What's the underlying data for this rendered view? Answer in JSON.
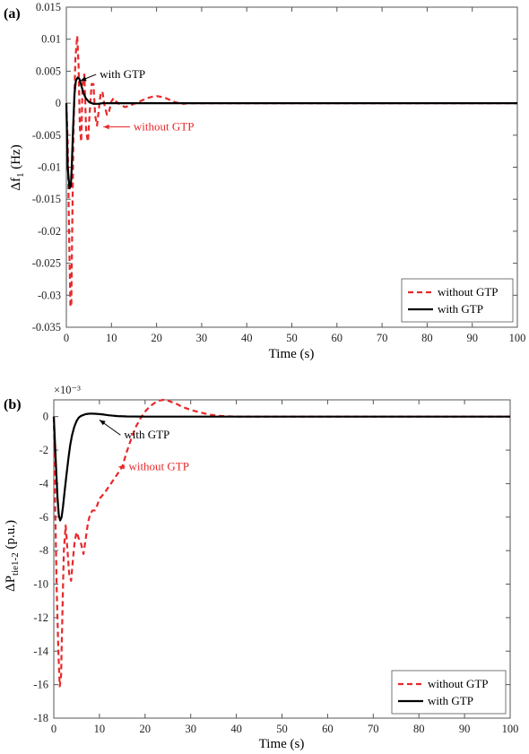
{
  "chart_data": [
    {
      "type": "line",
      "panel_label": "(a)",
      "xlabel": "Time (s)",
      "ylabel_main": "Δf",
      "ylabel_sub": "1",
      "ylabel_unit": " (Hz)",
      "exponent_label": "",
      "xlim": [
        0,
        100
      ],
      "ylim": [
        -0.035,
        0.015
      ],
      "xticks": [
        0,
        10,
        20,
        30,
        40,
        50,
        60,
        70,
        80,
        90,
        100
      ],
      "yticks": [
        -0.035,
        -0.03,
        -0.025,
        -0.02,
        -0.015,
        -0.01,
        -0.005,
        0,
        0.005,
        0.01,
        0.015
      ],
      "ytick_labels": [
        "-0.035",
        "-0.03",
        "-0.025",
        "-0.02",
        "-0.015",
        "-0.01",
        "-0.005",
        "0",
        "0.005",
        "0.01",
        "0.015"
      ],
      "legend_position": "bottom-right",
      "series": [
        {
          "name": "without GTP",
          "color": "#e8282b",
          "style": "dashed",
          "x": [
            0,
            0.3,
            0.6,
            0.9,
            1.1,
            1.3,
            1.6,
            2.0,
            2.4,
            2.7,
            3.0,
            3.3,
            3.6,
            4.0,
            4.4,
            4.8,
            5.2,
            5.6,
            6.0,
            6.4,
            6.8,
            7.2,
            7.6,
            8.0,
            8.5,
            9.0,
            9.5,
            10.0,
            10.5,
            11.0,
            12.0,
            13.0,
            14.0,
            15.0,
            16.0,
            17.0,
            18.0,
            19.0,
            20.0,
            21.0,
            22.0,
            23.0,
            24.0,
            25.0,
            26.0,
            27.0,
            28.0,
            30.0,
            35.0,
            40.0,
            100.0
          ],
          "y": [
            0,
            -0.006,
            -0.02,
            -0.0315,
            -0.0318,
            -0.02,
            -0.004,
            0.007,
            0.0105,
            0.006,
            -0.004,
            -0.006,
            0.003,
            0.0045,
            -0.0045,
            -0.006,
            -0.001,
            0.003,
            0.003,
            -0.002,
            -0.0035,
            -0.001,
            0.0015,
            0.0018,
            -0.0005,
            -0.0018,
            -0.0012,
            0.0003,
            0.0008,
            0.0003,
            -0.0003,
            -0.0006,
            -0.0004,
            -0.0001,
            0.0002,
            0.0005,
            0.0008,
            0.001,
            0.0011,
            0.001,
            0.0008,
            0.0005,
            0.0002,
            0.0,
            -0.0001,
            0.0,
            0.0,
            0.0,
            0.0,
            0.0,
            0.0
          ]
        },
        {
          "name": "with GTP",
          "color": "#000000",
          "style": "solid",
          "x": [
            0,
            0.3,
            0.7,
            1.0,
            1.2,
            1.5,
            1.8,
            2.1,
            2.5,
            2.9,
            3.3,
            3.8,
            4.3,
            5.0,
            6.0,
            7.0,
            8.0,
            10.0,
            15.0,
            100.0
          ],
          "y": [
            0,
            -0.01,
            -0.0133,
            -0.013,
            -0.01,
            -0.004,
            0.0015,
            0.0035,
            0.004,
            0.0038,
            0.0028,
            0.0016,
            0.0008,
            0.0002,
            -0.0001,
            -0.0001,
            0.0,
            0.0,
            0.0,
            0.0
          ]
        }
      ],
      "annotations": [
        {
          "text": "with GTP",
          "color": "#000000",
          "x": 7.0,
          "y": 0.0045,
          "ax": 3.1,
          "ay": 0.0035
        },
        {
          "text": "without GTP",
          "color": "#e8282b",
          "x": 14.5,
          "y": -0.0037,
          "ax": 8.2,
          "ay": -0.0037
        }
      ]
    },
    {
      "type": "line",
      "panel_label": "(b)",
      "xlabel": "Time (s)",
      "ylabel_main": "ΔP",
      "ylabel_sub": "tie1-2",
      "ylabel_unit": " (p.u.)",
      "exponent_label": "×10⁻³",
      "xlim": [
        0,
        100
      ],
      "ylim": [
        -18,
        1
      ],
      "xticks": [
        0,
        10,
        20,
        30,
        40,
        50,
        60,
        70,
        80,
        90,
        100
      ],
      "yticks": [
        -18,
        -16,
        -14,
        -12,
        -10,
        -8,
        -6,
        -4,
        -2,
        0
      ],
      "ytick_labels": [
        "-18",
        "-16",
        "-14",
        "-12",
        "-10",
        "-8",
        "-6",
        "-4",
        "-2",
        "0"
      ],
      "legend_position": "bottom-right",
      "series": [
        {
          "name": "without GTP",
          "color": "#e8282b",
          "style": "dashed",
          "x": [
            0,
            0.3,
            0.6,
            1.0,
            1.3,
            1.6,
            1.9,
            2.2,
            2.6,
            3.0,
            3.4,
            3.8,
            4.2,
            4.6,
            5.0,
            5.5,
            6.0,
            6.5,
            7.0,
            7.5,
            8.0,
            8.5,
            9.0,
            9.5,
            10.0,
            11.0,
            12.0,
            13.0,
            14.0,
            15.0,
            16.0,
            17.0,
            18.0,
            19.0,
            20.0,
            21.0,
            22.0,
            23.0,
            24.0,
            25.0,
            26.0,
            27.0,
            28.0,
            30.0,
            32.0,
            34.0,
            36.0,
            38.0,
            40.0,
            42.0,
            45.0,
            100.0
          ],
          "y": [
            0,
            -5.0,
            -10.0,
            -14.0,
            -16.1,
            -15.5,
            -11.5,
            -8.0,
            -6.5,
            -8.0,
            -9.5,
            -9.8,
            -8.5,
            -7.4,
            -6.9,
            -7.3,
            -7.6,
            -8.2,
            -7.3,
            -6.3,
            -5.8,
            -5.6,
            -5.6,
            -5.3,
            -4.9,
            -4.6,
            -4.2,
            -3.8,
            -3.4,
            -3.0,
            -2.1,
            -1.3,
            -0.6,
            -0.1,
            0.3,
            0.6,
            0.8,
            0.95,
            1.0,
            0.95,
            0.85,
            0.75,
            0.6,
            0.4,
            0.25,
            0.12,
            0.05,
            0.02,
            0.0,
            0.0,
            0.0,
            0.0
          ]
        },
        {
          "name": "with GTP",
          "color": "#000000",
          "style": "solid",
          "x": [
            0,
            0.2,
            0.5,
            0.8,
            1.1,
            1.4,
            1.7,
            2.0,
            2.4,
            2.8,
            3.2,
            3.6,
            4.0,
            4.5,
            5.0,
            5.5,
            6.0,
            7.0,
            8.0,
            9.0,
            10.0,
            11.0,
            12.0,
            14.0,
            16.0,
            20.0,
            100.0
          ],
          "y": [
            0,
            -1.2,
            -3.0,
            -4.8,
            -5.9,
            -6.2,
            -6.0,
            -5.4,
            -4.4,
            -3.4,
            -2.5,
            -1.7,
            -1.1,
            -0.6,
            -0.25,
            -0.05,
            0.05,
            0.15,
            0.18,
            0.17,
            0.15,
            0.12,
            0.08,
            0.03,
            0.01,
            0.0,
            0.0
          ]
        }
      ],
      "annotations": [
        {
          "text": "with GTP",
          "color": "#000000",
          "x": 15.0,
          "y": -1.1,
          "ax": 10.0,
          "ay": -0.2
        },
        {
          "text": "without GTP",
          "color": "#e8282b",
          "x": 16.0,
          "y": -3.0,
          "ax": 14.2,
          "ay": -3.0
        }
      ]
    }
  ]
}
